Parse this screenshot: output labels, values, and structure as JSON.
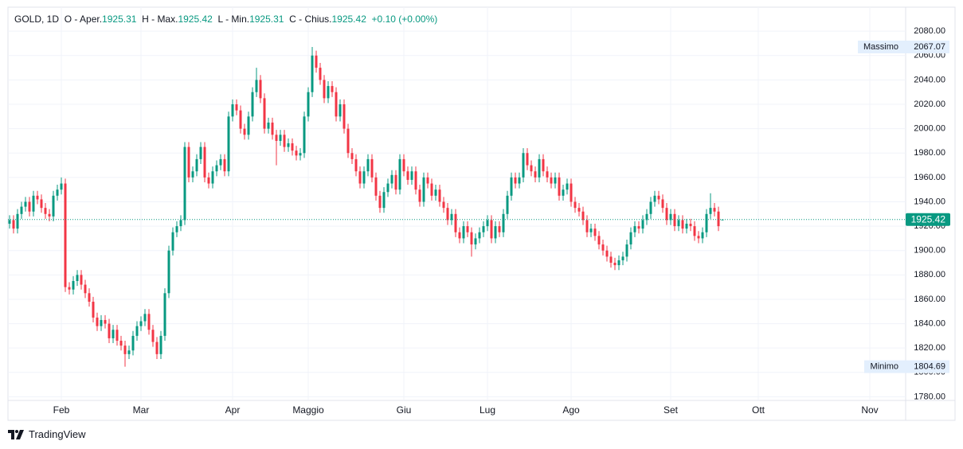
{
  "chart_data": {
    "type": "candlestick",
    "title": "GOLD, 1D",
    "ohlc_labels": {
      "open": "O - Aper.",
      "high": "H - Max.",
      "low": "L - Min.",
      "close": "C - Chius."
    },
    "change": "+0.10 (+0.00%)",
    "high_label": "Massimo",
    "low_label": "Minimo",
    "up_color": "#089981",
    "down_color": "#f23645",
    "grid": true,
    "ylim": [
      1777,
      2086
    ],
    "yticks": [
      {
        "value": 1780,
        "label": "1780.00"
      },
      {
        "value": 1800,
        "label": "1800.00"
      },
      {
        "value": 1820,
        "label": "1820.00"
      },
      {
        "value": 1840,
        "label": "1840.00"
      },
      {
        "value": 1860,
        "label": "1860.00"
      },
      {
        "value": 1880,
        "label": "1880.00"
      },
      {
        "value": 1900,
        "label": "1900.00"
      },
      {
        "value": 1920,
        "label": "1920.00"
      },
      {
        "value": 1940,
        "label": "1940.00"
      },
      {
        "value": 1960,
        "label": "1960.00"
      },
      {
        "value": 1980,
        "label": "1980.00"
      },
      {
        "value": 2000,
        "label": "2000.00"
      },
      {
        "value": 2020,
        "label": "2020.00"
      },
      {
        "value": 2040,
        "label": "2040.00"
      },
      {
        "value": 2060,
        "label": "2060.00"
      },
      {
        "value": 2080,
        "label": "2080.00"
      }
    ],
    "categories": [
      null,
      null,
      null,
      null,
      null,
      null,
      null,
      null,
      null,
      null,
      null,
      null,
      null,
      "Feb",
      null,
      null,
      null,
      null,
      null,
      null,
      null,
      null,
      null,
      null,
      null,
      null,
      null,
      null,
      null,
      null,
      null,
      null,
      null,
      "Mar",
      null,
      null,
      null,
      null,
      null,
      null,
      null,
      null,
      null,
      null,
      null,
      null,
      null,
      null,
      null,
      null,
      null,
      null,
      null,
      null,
      null,
      null,
      "Apr",
      null,
      null,
      null,
      null,
      null,
      null,
      null,
      null,
      null,
      null,
      null,
      null,
      null,
      null,
      null,
      null,
      null,
      null,
      "Maggio",
      null,
      null,
      null,
      null,
      null,
      null,
      null,
      null,
      null,
      null,
      null,
      null,
      null,
      null,
      null,
      null,
      null,
      null,
      null,
      null,
      null,
      null,
      null,
      "Giu",
      null,
      null,
      null,
      null,
      null,
      null,
      null,
      null,
      null,
      null,
      null,
      null,
      null,
      null,
      null,
      null,
      null,
      null,
      null,
      null,
      "Lug",
      null,
      null,
      null,
      null,
      null,
      null,
      null,
      null,
      null,
      null,
      null,
      null,
      null,
      null,
      null,
      null,
      null,
      null,
      null,
      null,
      "Ago",
      null,
      null,
      null,
      null,
      null,
      null,
      null,
      null,
      null,
      null,
      null,
      null,
      null,
      null,
      null,
      null,
      null,
      null,
      null,
      null,
      null,
      null,
      null,
      null,
      "Set",
      null,
      null,
      null,
      null,
      null,
      null,
      null,
      null,
      null,
      null,
      null,
      null,
      null,
      null,
      null,
      null,
      null,
      null,
      null,
      null,
      null,
      "Ott",
      null,
      null,
      null,
      null,
      null,
      null,
      null,
      null,
      null,
      null,
      null,
      null,
      null,
      null,
      null,
      null,
      null,
      null,
      null,
      null,
      null,
      null,
      null,
      null,
      null,
      null,
      null,
      "Nov",
      null,
      null,
      null,
      null,
      null,
      null,
      null,
      null
    ],
    "open": [
      1922,
      1925,
      1918,
      1930,
      1936,
      1940,
      1932,
      1945,
      1942,
      1935,
      1930,
      1928,
      1945,
      1950,
      1955,
      1870,
      1868,
      1875,
      1880,
      1872,
      1865,
      1858,
      1845,
      1838,
      1843,
      1840,
      1828,
      1835,
      1826,
      1822,
      1815,
      1818,
      1830,
      1838,
      1842,
      1848,
      1835,
      1825,
      1815,
      1830,
      1865,
      1900,
      1915,
      1920,
      1925,
      1985,
      1960,
      1965,
      1975,
      1985,
      1960,
      1955,
      1965,
      1970,
      1975,
      1965,
      2010,
      2020,
      2015,
      2000,
      1995,
      2010,
      2030,
      2040,
      2025,
      2000,
      2005,
      1995,
      1990,
      1995,
      1985,
      1988,
      1982,
      1978,
      1980,
      2010,
      2030,
      2060,
      2050,
      2040,
      2025,
      2035,
      2030,
      2010,
      2020,
      2000,
      1980,
      1975,
      1965,
      1955,
      1965,
      1975,
      1960,
      1945,
      1935,
      1948,
      1955,
      1962,
      1950,
      1975,
      1965,
      1958,
      1965,
      1950,
      1940,
      1960,
      1955,
      1945,
      1950,
      1940,
      1935,
      1925,
      1930,
      1915,
      1910,
      1920,
      1915,
      1905,
      1910,
      1915,
      1920,
      1925,
      1910,
      1920,
      1915,
      1930,
      1945,
      1960,
      1955,
      1960,
      1980,
      1970,
      1965,
      1960,
      1975,
      1965,
      1960,
      1955,
      1960,
      1945,
      1950,
      1955,
      1940,
      1935,
      1932,
      1925,
      1915,
      1918,
      1912,
      1905,
      1900,
      1895,
      1890,
      1888,
      1892,
      1895,
      1905,
      1915,
      1920,
      1918,
      1925,
      1930,
      1940,
      1945,
      1942,
      1935,
      1925,
      1930,
      1920,
      1925,
      1918,
      1922,
      1920,
      1912,
      1910,
      1915,
      1930,
      1935,
      1932,
      1925.31,
      null,
      null,
      null,
      null,
      null,
      null,
      null,
      null,
      null,
      null,
      null,
      null,
      null,
      null,
      null,
      null,
      null,
      null,
      null,
      null,
      null,
      null,
      null,
      null,
      null,
      null,
      null,
      null,
      null,
      null,
      null,
      null,
      null,
      null,
      null,
      null,
      null,
      null,
      null,
      null,
      null,
      null,
      null,
      null,
      null
    ],
    "high": [
      1929,
      1929,
      1934,
      1940,
      1944,
      1944,
      1949,
      1949,
      1946,
      1939,
      1934,
      1949,
      1954,
      1960,
      1959,
      1874,
      1879,
      1884,
      1884,
      1876,
      1869,
      1862,
      1849,
      1847,
      1847,
      1844,
      1839,
      1839,
      1830,
      1826,
      1822,
      1834,
      1842,
      1846,
      1852,
      1852,
      1839,
      1829,
      1834,
      1869,
      1904,
      1919,
      1924,
      1929,
      1989,
      1989,
      1969,
      1979,
      1989,
      1989,
      1964,
      1969,
      1974,
      1979,
      1979,
      2014,
      2024,
      2024,
      2019,
      2004,
      2014,
      2034,
      2050,
      2044,
      2029,
      2009,
      2009,
      1999,
      1999,
      1999,
      1992,
      1992,
      1986,
      1984,
      2014,
      2034,
      2067.07,
      2064,
      2054,
      2044,
      2039,
      2039,
      2034,
      2024,
      2024,
      2004,
      1984,
      1979,
      1969,
      1969,
      1979,
      1979,
      1964,
      1949,
      1952,
      1959,
      1966,
      1966,
      1979,
      1979,
      1969,
      1969,
      1969,
      1954,
      1964,
      1964,
      1959,
      1954,
      1954,
      1944,
      1939,
      1934,
      1934,
      1919,
      1924,
      1924,
      1919,
      1914,
      1919,
      1924,
      1929,
      1929,
      1924,
      1924,
      1934,
      1949,
      1964,
      1964,
      1964,
      1984,
      1984,
      1974,
      1969,
      1979,
      1979,
      1969,
      1964,
      1964,
      1964,
      1954,
      1959,
      1959,
      1944,
      1939,
      1936,
      1929,
      1922,
      1922,
      1916,
      1909,
      1904,
      1899,
      1894,
      1896,
      1899,
      1909,
      1919,
      1924,
      1924,
      1929,
      1934,
      1944,
      1949,
      1949,
      1946,
      1939,
      1934,
      1934,
      1929,
      1929,
      1926,
      1926,
      1924,
      1916,
      1919,
      1934,
      1947,
      1939,
      1936,
      1925.42,
      null,
      null,
      null,
      null,
      null,
      null,
      null,
      null,
      null,
      null,
      null,
      null,
      null,
      null,
      null,
      null,
      null,
      null,
      null,
      null,
      null,
      null,
      null,
      null,
      null,
      null,
      null,
      null,
      null,
      null,
      null,
      null,
      null,
      null,
      null,
      null,
      null,
      null,
      null,
      null,
      null,
      null,
      null,
      null,
      null
    ],
    "low": [
      1918,
      1914,
      1914,
      1926,
      1932,
      1928,
      1928,
      1938,
      1931,
      1926,
      1924,
      1924,
      1941,
      1946,
      1866,
      1864,
      1864,
      1871,
      1868,
      1861,
      1854,
      1841,
      1834,
      1834,
      1836,
      1824,
      1824,
      1822,
      1818,
      1804.69,
      1811,
      1814,
      1826,
      1834,
      1838,
      1831,
      1821,
      1811,
      1811,
      1826,
      1861,
      1896,
      1911,
      1916,
      1921,
      1956,
      1956,
      1961,
      1971,
      1956,
      1951,
      1951,
      1961,
      1966,
      1961,
      1961,
      2006,
      2011,
      1996,
      1991,
      1991,
      2006,
      2026,
      2021,
      1996,
      1996,
      1991,
      1970,
      1986,
      1981,
      1981,
      1978,
      1974,
      1974,
      1976,
      2006,
      2026,
      2046,
      2036,
      2021,
      2021,
      2026,
      2006,
      2006,
      1996,
      1976,
      1971,
      1961,
      1951,
      1951,
      1961,
      1956,
      1941,
      1931,
      1931,
      1944,
      1951,
      1946,
      1946,
      1961,
      1954,
      1954,
      1946,
      1936,
      1936,
      1951,
      1941,
      1941,
      1936,
      1931,
      1921,
      1921,
      1911,
      1906,
      1906,
      1911,
      1895,
      1901,
      1906,
      1911,
      1916,
      1906,
      1906,
      1911,
      1911,
      1926,
      1941,
      1951,
      1951,
      1956,
      1966,
      1961,
      1956,
      1956,
      1961,
      1956,
      1951,
      1951,
      1941,
      1941,
      1946,
      1936,
      1931,
      1928,
      1921,
      1911,
      1911,
      1908,
      1901,
      1896,
      1891,
      1886,
      1884,
      1884,
      1888,
      1891,
      1901,
      1911,
      1914,
      1914,
      1921,
      1926,
      1936,
      1938,
      1931,
      1921,
      1921,
      1916,
      1916,
      1914,
      1914,
      1916,
      1908,
      1906,
      1906,
      1911,
      1926,
      1928,
      1916,
      1925.31,
      null,
      null,
      null,
      null,
      null,
      null,
      null,
      null,
      null,
      null,
      null,
      null,
      null,
      null,
      null,
      null,
      null,
      null,
      null,
      null,
      null,
      null,
      null,
      null,
      null,
      null,
      null,
      null,
      null,
      null,
      null,
      null,
      null,
      null,
      null,
      null,
      null,
      null,
      null,
      null,
      null,
      null,
      null,
      null,
      null
    ],
    "close": [
      1925,
      1918,
      1930,
      1936,
      1940,
      1932,
      1945,
      1942,
      1935,
      1930,
      1928,
      1945,
      1950,
      1955,
      1870,
      1868,
      1875,
      1880,
      1872,
      1865,
      1858,
      1845,
      1838,
      1843,
      1840,
      1828,
      1835,
      1826,
      1822,
      1815,
      1818,
      1830,
      1838,
      1842,
      1848,
      1835,
      1825,
      1815,
      1830,
      1865,
      1900,
      1915,
      1920,
      1925,
      1985,
      1960,
      1965,
      1975,
      1985,
      1960,
      1955,
      1965,
      1970,
      1975,
      1965,
      2010,
      2020,
      2015,
      2000,
      1995,
      2010,
      2030,
      2040,
      2025,
      2000,
      2005,
      1995,
      1990,
      1995,
      1985,
      1988,
      1982,
      1978,
      1980,
      2010,
      2030,
      2060,
      2050,
      2040,
      2025,
      2035,
      2030,
      2010,
      2020,
      2000,
      1980,
      1975,
      1965,
      1955,
      1965,
      1975,
      1960,
      1945,
      1935,
      1948,
      1955,
      1962,
      1950,
      1975,
      1965,
      1958,
      1965,
      1950,
      1940,
      1960,
      1955,
      1945,
      1950,
      1940,
      1935,
      1925,
      1930,
      1915,
      1910,
      1920,
      1915,
      1905,
      1910,
      1915,
      1920,
      1925,
      1910,
      1920,
      1915,
      1930,
      1945,
      1960,
      1955,
      1960,
      1980,
      1970,
      1965,
      1960,
      1975,
      1965,
      1960,
      1955,
      1960,
      1945,
      1950,
      1955,
      1940,
      1935,
      1932,
      1925,
      1915,
      1918,
      1912,
      1905,
      1900,
      1895,
      1890,
      1888,
      1892,
      1895,
      1905,
      1915,
      1920,
      1918,
      1925,
      1930,
      1940,
      1945,
      1942,
      1935,
      1925,
      1930,
      1920,
      1925,
      1918,
      1922,
      1920,
      1912,
      1910,
      1915,
      1930,
      1935,
      1932,
      1920,
      1925.42,
      null,
      null,
      null,
      null,
      null,
      null,
      null,
      null,
      null,
      null,
      null,
      null,
      null,
      null,
      null,
      null,
      null,
      null,
      null,
      null,
      null,
      null,
      null,
      null,
      null,
      null,
      null,
      null,
      null,
      null,
      null,
      null,
      null,
      null,
      null,
      null,
      null,
      null,
      null,
      null,
      null,
      null,
      null,
      null,
      null
    ]
  },
  "footer": {
    "brand": "TradingView"
  }
}
